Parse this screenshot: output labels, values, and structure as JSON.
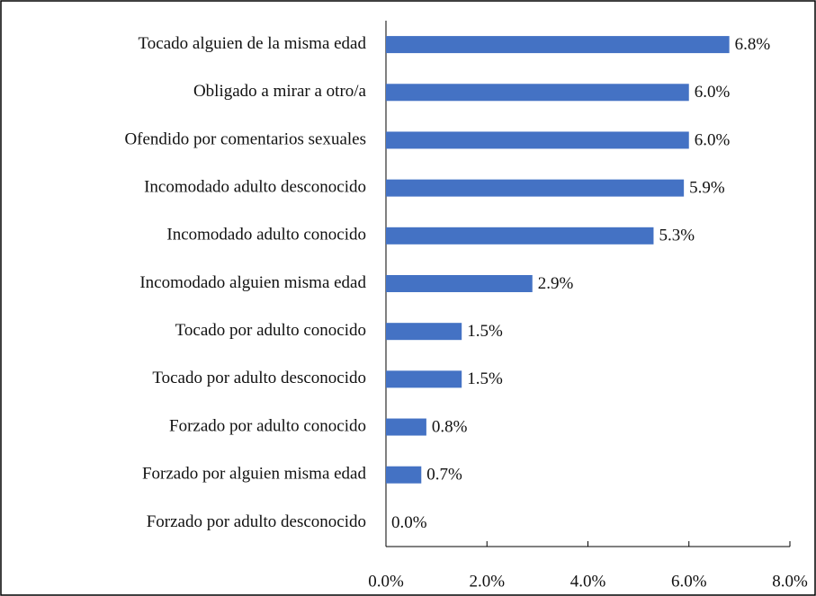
{
  "chart_data": {
    "type": "barh",
    "categories": [
      "Tocado alguien de la misma edad",
      "Obligado a mirar a otro/a",
      "Ofendido por comentarios sexuales",
      "Incomodado adulto desconocido",
      "Incomodado adulto conocido",
      "Incomodado alguien misma edad",
      "Tocado por adulto conocido",
      "Tocado por adulto desconocido",
      "Forzado por adulto conocido",
      "Forzado por alguien misma edad",
      "Forzado por adulto desconocido"
    ],
    "values": [
      6.8,
      6.0,
      6.0,
      5.9,
      5.3,
      2.9,
      1.5,
      1.5,
      0.8,
      0.7,
      0.0
    ],
    "value_labels": [
      "6.8%",
      "6.0%",
      "6.0%",
      "5.9%",
      "5.3%",
      "2.9%",
      "1.5%",
      "1.5%",
      "0.8%",
      "0.7%",
      "0.0%"
    ],
    "color": "#4472c4",
    "xlim": [
      0,
      8
    ],
    "xticks": [
      {
        "value": 0,
        "label": "0.0%"
      },
      {
        "value": 2,
        "label": "2.0%"
      },
      {
        "value": 4,
        "label": "4.0%"
      },
      {
        "value": 6,
        "label": "6.0%"
      },
      {
        "value": 8,
        "label": "8.0%"
      }
    ]
  }
}
